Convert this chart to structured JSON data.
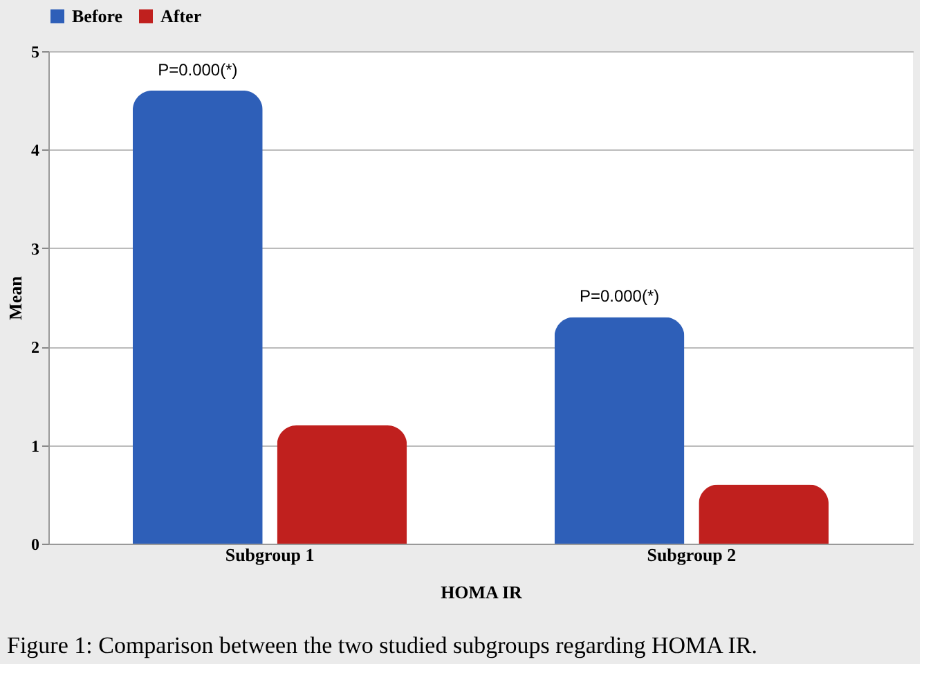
{
  "chart_data": {
    "type": "bar",
    "categories": [
      "Subgroup 1",
      "Subgroup 2"
    ],
    "series": [
      {
        "name": "Before",
        "color": "#2e5fb8",
        "values": [
          4.6,
          2.3
        ]
      },
      {
        "name": "After",
        "color": "#c0201e",
        "values": [
          1.2,
          0.6
        ]
      }
    ],
    "ylabel": "Mean",
    "xlabel": "HOMA IR",
    "ylim": [
      0,
      5
    ],
    "yticks": [
      0,
      1,
      2,
      3,
      4,
      5
    ],
    "grid": "y",
    "legend": "top",
    "annotations": [
      "P=0.000(*)",
      "P=0.000(*)",
      "Figure 1: Comparison between the two studied subgroups regarding HOMA IR."
    ]
  }
}
